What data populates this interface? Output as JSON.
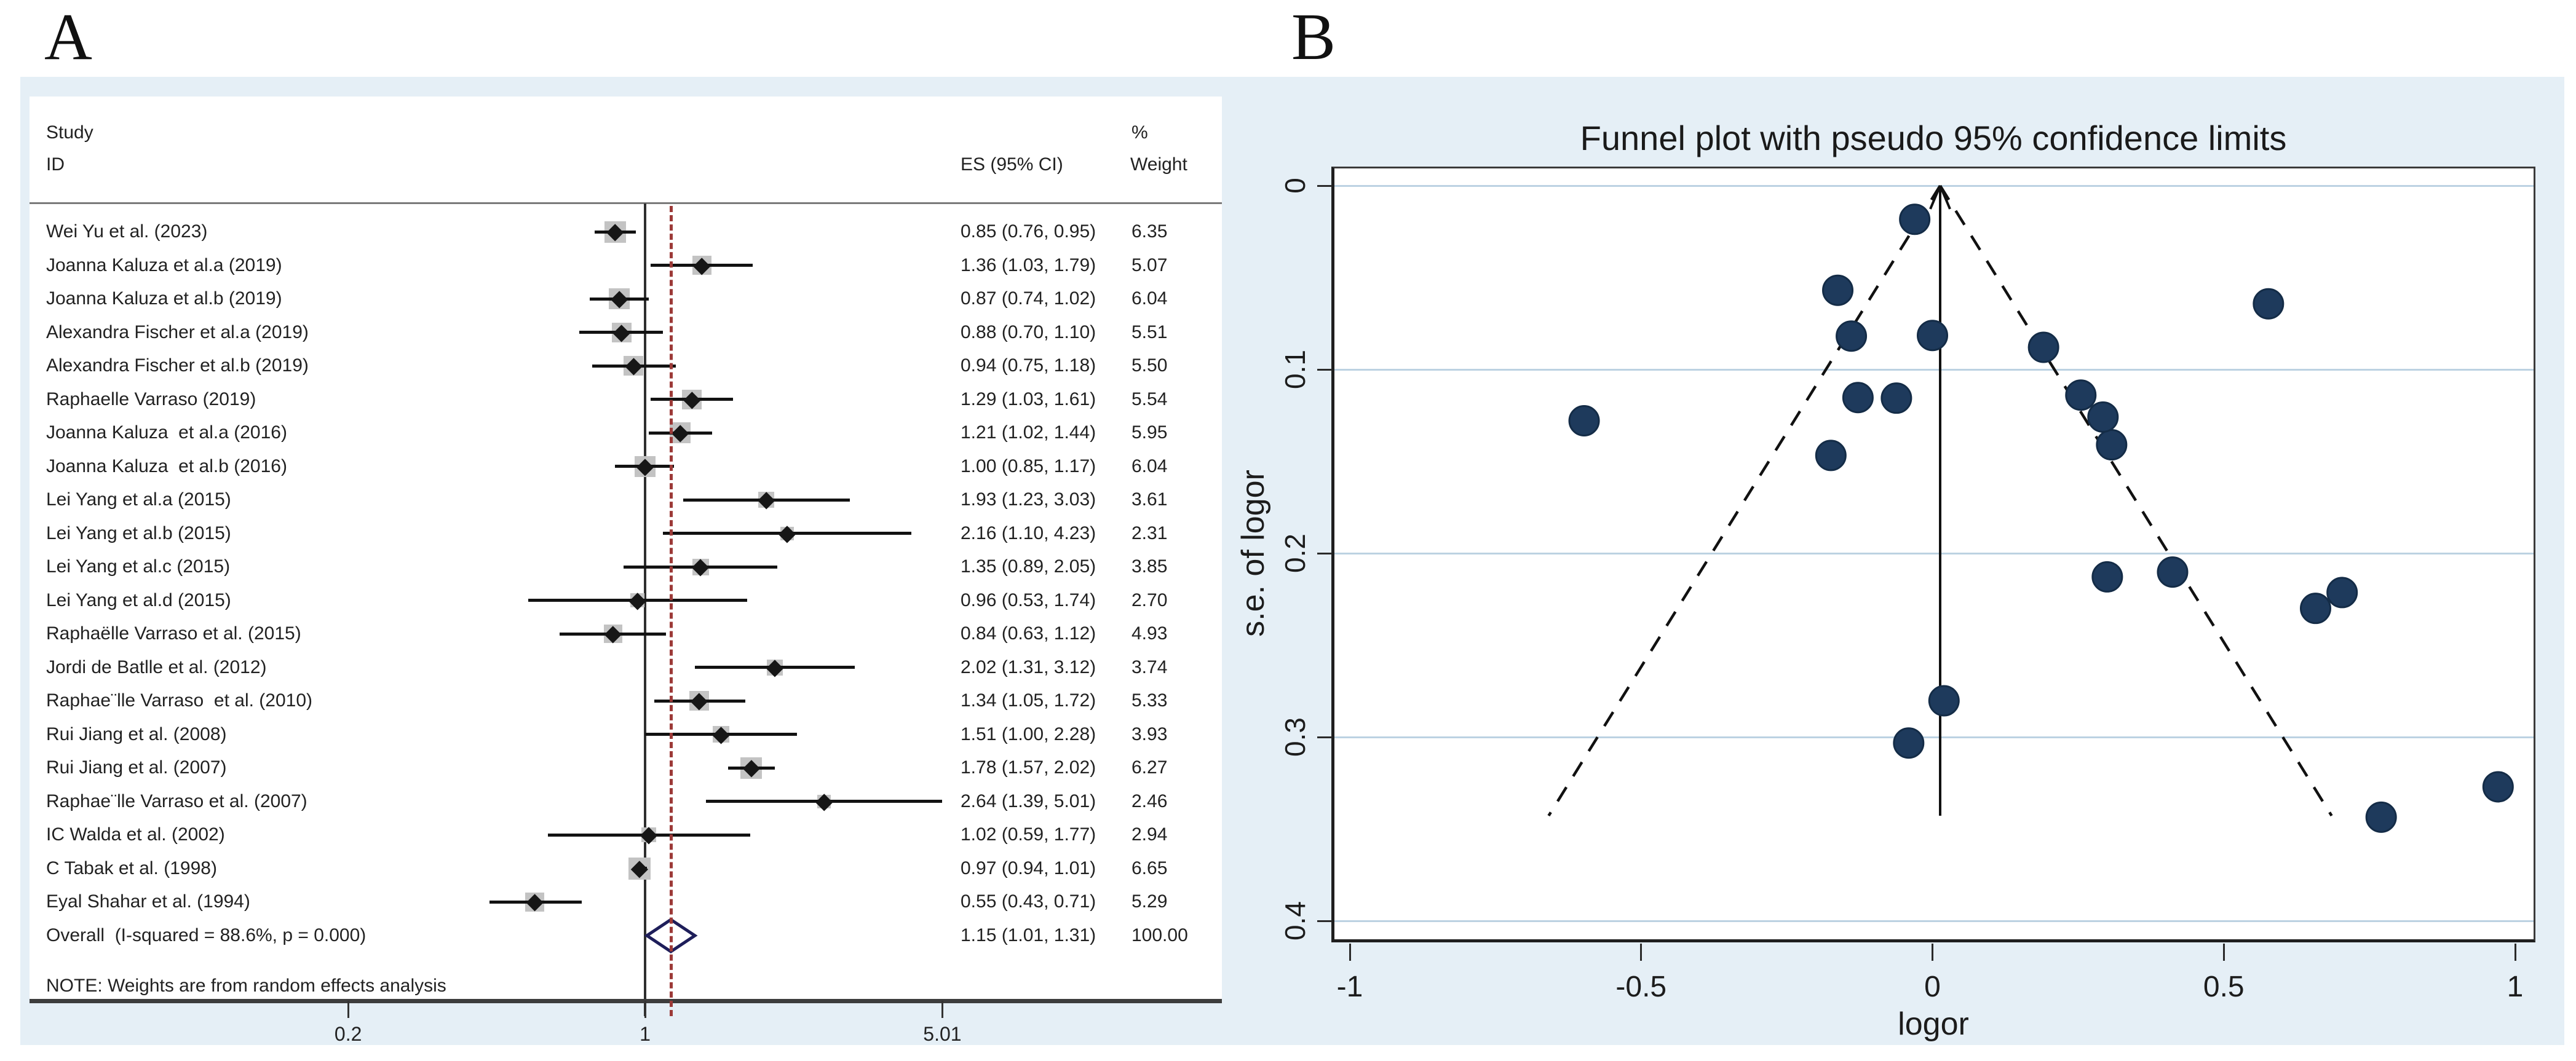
{
  "panel_a": {
    "label": "A",
    "header": {
      "study": "Study",
      "id": "ID",
      "pct": "%",
      "es": "ES (95% CI)",
      "weight": "Weight"
    },
    "studies": [
      {
        "name": "Wei Yu et al. (2023)",
        "es_label": "0.85 (0.76, 0.95)",
        "weight_label": "6.35",
        "es": 0.85,
        "lo": 0.76,
        "hi": 0.95,
        "weight": 6.35
      },
      {
        "name": "Joanna Kaluza et al.a (2019)",
        "es_label": "1.36 (1.03, 1.79)",
        "weight_label": "5.07",
        "es": 1.36,
        "lo": 1.03,
        "hi": 1.79,
        "weight": 5.07
      },
      {
        "name": "Joanna Kaluza et al.b (2019)",
        "es_label": "0.87 (0.74, 1.02)",
        "weight_label": "6.04",
        "es": 0.87,
        "lo": 0.74,
        "hi": 1.02,
        "weight": 6.04
      },
      {
        "name": "Alexandra Fischer et al.a (2019)",
        "es_label": "0.88 (0.70, 1.10)",
        "weight_label": "5.51",
        "es": 0.88,
        "lo": 0.7,
        "hi": 1.1,
        "weight": 5.51
      },
      {
        "name": "Alexandra Fischer et al.b (2019)",
        "es_label": "0.94 (0.75, 1.18)",
        "weight_label": "5.50",
        "es": 0.94,
        "lo": 0.75,
        "hi": 1.18,
        "weight": 5.5
      },
      {
        "name": "Raphaelle Varraso (2019)",
        "es_label": "1.29 (1.03, 1.61)",
        "weight_label": "5.54",
        "es": 1.29,
        "lo": 1.03,
        "hi": 1.61,
        "weight": 5.54
      },
      {
        "name": "Joanna Kaluza  et al.a (2016)",
        "es_label": "1.21 (1.02, 1.44)",
        "weight_label": "5.95",
        "es": 1.21,
        "lo": 1.02,
        "hi": 1.44,
        "weight": 5.95
      },
      {
        "name": "Joanna Kaluza  et al.b (2016)",
        "es_label": "1.00 (0.85, 1.17)",
        "weight_label": "6.04",
        "es": 1.0,
        "lo": 0.85,
        "hi": 1.17,
        "weight": 6.04
      },
      {
        "name": "Lei Yang et al.a (2015)",
        "es_label": "1.93 (1.23, 3.03)",
        "weight_label": "3.61",
        "es": 1.93,
        "lo": 1.23,
        "hi": 3.03,
        "weight": 3.61
      },
      {
        "name": "Lei Yang et al.b (2015)",
        "es_label": "2.16 (1.10, 4.23)",
        "weight_label": "2.31",
        "es": 2.16,
        "lo": 1.1,
        "hi": 4.23,
        "weight": 2.31
      },
      {
        "name": "Lei Yang et al.c (2015)",
        "es_label": "1.35 (0.89, 2.05)",
        "weight_label": "3.85",
        "es": 1.35,
        "lo": 0.89,
        "hi": 2.05,
        "weight": 3.85
      },
      {
        "name": "Lei Yang et al.d (2015)",
        "es_label": "0.96 (0.53, 1.74)",
        "weight_label": "2.70",
        "es": 0.96,
        "lo": 0.53,
        "hi": 1.74,
        "weight": 2.7
      },
      {
        "name": "Raphaëlle Varraso et al. (2015)",
        "es_label": "0.84 (0.63, 1.12)",
        "weight_label": "4.93",
        "es": 0.84,
        "lo": 0.63,
        "hi": 1.12,
        "weight": 4.93
      },
      {
        "name": "Jordi de Batlle et al. (2012)",
        "es_label": "2.02 (1.31, 3.12)",
        "weight_label": "3.74",
        "es": 2.02,
        "lo": 1.31,
        "hi": 3.12,
        "weight": 3.74
      },
      {
        "name": "Raphae¨lle Varraso  et al. (2010)",
        "es_label": "1.34 (1.05, 1.72)",
        "weight_label": "5.33",
        "es": 1.34,
        "lo": 1.05,
        "hi": 1.72,
        "weight": 5.33
      },
      {
        "name": "Rui Jiang et al. (2008)",
        "es_label": "1.51 (1.00, 2.28)",
        "weight_label": "3.93",
        "es": 1.51,
        "lo": 1.0,
        "hi": 2.28,
        "weight": 3.93
      },
      {
        "name": "Rui Jiang et al. (2007)",
        "es_label": "1.78 (1.57, 2.02)",
        "weight_label": "6.27",
        "es": 1.78,
        "lo": 1.57,
        "hi": 2.02,
        "weight": 6.27
      },
      {
        "name": "Raphae¨lle Varraso et al. (2007)",
        "es_label": "2.64 (1.39, 5.01)",
        "weight_label": "2.46",
        "es": 2.64,
        "lo": 1.39,
        "hi": 5.01,
        "weight": 2.46
      },
      {
        "name": "IC Walda et al. (2002)",
        "es_label": "1.02 (0.59, 1.77)",
        "weight_label": "2.94",
        "es": 1.02,
        "lo": 0.59,
        "hi": 1.77,
        "weight": 2.94
      },
      {
        "name": "C Tabak et al. (1998)",
        "es_label": "0.97 (0.94, 1.01)",
        "weight_label": "6.65",
        "es": 0.97,
        "lo": 0.94,
        "hi": 1.01,
        "weight": 6.65
      },
      {
        "name": "Eyal Shahar et al. (1994)",
        "es_label": "0.55 (0.43, 0.71)",
        "weight_label": "5.29",
        "es": 0.55,
        "lo": 0.43,
        "hi": 0.71,
        "weight": 5.29
      }
    ],
    "overall": {
      "name": "Overall  (I-squared = 88.6%, p = 0.000)",
      "es_label": "1.15 (1.01, 1.31)",
      "weight_label": "100.00",
      "es": 1.15,
      "lo": 1.01,
      "hi": 1.31
    },
    "note": "NOTE: Weights are from random effects analysis",
    "x_ticks": [
      {
        "label": "0.2",
        "value": 0.2
      },
      {
        "label": "1",
        "value": 1
      },
      {
        "label": "5.01",
        "value": 5.01
      }
    ]
  },
  "panel_b": {
    "label": "B",
    "title": "Funnel plot with pseudo 95% confidence limits",
    "x_axis_title": "logor",
    "y_axis_title": "s.e. of logor",
    "x_ticks": [
      {
        "label": "-1",
        "value": -1
      },
      {
        "label": "-0.5",
        "value": -0.5
      },
      {
        "label": "0",
        "value": 0
      },
      {
        "label": "0.5",
        "value": 0.5
      },
      {
        "label": "1",
        "value": 1
      }
    ],
    "y_ticks": [
      {
        "label": "0",
        "value": 0
      },
      {
        "label": "0.1",
        "value": 0.1
      },
      {
        "label": "0.2",
        "value": 0.2
      },
      {
        "label": "0.3",
        "value": 0.3
      },
      {
        "label": "0.4",
        "value": 0.4
      }
    ]
  },
  "colors": {
    "background_blue": "#e5eff6",
    "panel_white": "#ffffff",
    "gridline_blue": "#bcd2e2",
    "funnel_point_fill": "#1e3a5c",
    "funnel_point_stroke": "#142c47",
    "overall_diamond_stroke": "#1e1e5a",
    "red_dashed_line": "#9c3a38",
    "ci_line_black": "#121212",
    "weight_square_gray": "#c3c3c3",
    "axis_dark": "#3d3d3d"
  },
  "chart_data": [
    {
      "type": "forest",
      "title": "",
      "xlabel_ticks": [
        0.2,
        1,
        5.01
      ],
      "x_scale": "log",
      "null_line": 1,
      "overall_line": 1.15,
      "note": "NOTE: Weights are from random effects analysis",
      "series": [
        {
          "study": "Wei Yu et al. (2023)",
          "es": 0.85,
          "ci": [
            0.76,
            0.95
          ],
          "weight_pct": 6.35
        },
        {
          "study": "Joanna Kaluza et al.a (2019)",
          "es": 1.36,
          "ci": [
            1.03,
            1.79
          ],
          "weight_pct": 5.07
        },
        {
          "study": "Joanna Kaluza et al.b (2019)",
          "es": 0.87,
          "ci": [
            0.74,
            1.02
          ],
          "weight_pct": 6.04
        },
        {
          "study": "Alexandra Fischer et al.a (2019)",
          "es": 0.88,
          "ci": [
            0.7,
            1.1
          ],
          "weight_pct": 5.51
        },
        {
          "study": "Alexandra Fischer et al.b (2019)",
          "es": 0.94,
          "ci": [
            0.75,
            1.18
          ],
          "weight_pct": 5.5
        },
        {
          "study": "Raphaelle Varraso (2019)",
          "es": 1.29,
          "ci": [
            1.03,
            1.61
          ],
          "weight_pct": 5.54
        },
        {
          "study": "Joanna Kaluza et al.a (2016)",
          "es": 1.21,
          "ci": [
            1.02,
            1.44
          ],
          "weight_pct": 5.95
        },
        {
          "study": "Joanna Kaluza et al.b (2016)",
          "es": 1.0,
          "ci": [
            0.85,
            1.17
          ],
          "weight_pct": 6.04
        },
        {
          "study": "Lei Yang et al.a (2015)",
          "es": 1.93,
          "ci": [
            1.23,
            3.03
          ],
          "weight_pct": 3.61
        },
        {
          "study": "Lei Yang et al.b (2015)",
          "es": 2.16,
          "ci": [
            1.1,
            4.23
          ],
          "weight_pct": 2.31
        },
        {
          "study": "Lei Yang et al.c (2015)",
          "es": 1.35,
          "ci": [
            0.89,
            2.05
          ],
          "weight_pct": 3.85
        },
        {
          "study": "Lei Yang et al.d (2015)",
          "es": 0.96,
          "ci": [
            0.53,
            1.74
          ],
          "weight_pct": 2.7
        },
        {
          "study": "Raphaëlle Varraso et al. (2015)",
          "es": 0.84,
          "ci": [
            0.63,
            1.12
          ],
          "weight_pct": 4.93
        },
        {
          "study": "Jordi de Batlle et al. (2012)",
          "es": 2.02,
          "ci": [
            1.31,
            3.12
          ],
          "weight_pct": 3.74
        },
        {
          "study": "Raphae¨lle Varraso et al. (2010)",
          "es": 1.34,
          "ci": [
            1.05,
            1.72
          ],
          "weight_pct": 5.33
        },
        {
          "study": "Rui Jiang et al. (2008)",
          "es": 1.51,
          "ci": [
            1.0,
            2.28
          ],
          "weight_pct": 3.93
        },
        {
          "study": "Rui Jiang et al. (2007)",
          "es": 1.78,
          "ci": [
            1.57,
            2.02
          ],
          "weight_pct": 6.27
        },
        {
          "study": "Raphae¨lle Varraso et al. (2007)",
          "es": 2.64,
          "ci": [
            1.39,
            5.01
          ],
          "weight_pct": 2.46
        },
        {
          "study": "IC Walda et al. (2002)",
          "es": 1.02,
          "ci": [
            0.59,
            1.77
          ],
          "weight_pct": 2.94
        },
        {
          "study": "C Tabak et al. (1998)",
          "es": 0.97,
          "ci": [
            0.94,
            1.01
          ],
          "weight_pct": 6.65
        },
        {
          "study": "Eyal Shahar et al. (1994)",
          "es": 0.55,
          "ci": [
            0.43,
            0.71
          ],
          "weight_pct": 5.29
        }
      ],
      "overall": {
        "es": 1.15,
        "ci": [
          1.01,
          1.31
        ],
        "weight_pct": 100.0,
        "i_squared_pct": 88.6,
        "p": 0.0
      }
    },
    {
      "type": "scatter",
      "title": "Funnel plot with pseudo 95% confidence limits",
      "xlabel": "logor",
      "ylabel": "s.e. of logor",
      "xlim": [
        -1,
        1
      ],
      "ylim_inverted": [
        0,
        0.4
      ],
      "grid": true,
      "center_line_x": 0.013,
      "pseudo_ci_slope": 1.96,
      "points_logor_se": [
        [
          -0.163,
          0.057
        ],
        [
          0.308,
          0.141
        ],
        [
          -0.139,
          0.082
        ],
        [
          -0.128,
          0.115
        ],
        [
          -0.062,
          0.116
        ],
        [
          0.255,
          0.114
        ],
        [
          0.191,
          0.088
        ],
        [
          0.0,
          0.082
        ],
        [
          0.658,
          0.23
        ],
        [
          0.77,
          0.344
        ],
        [
          0.3,
          0.213
        ],
        [
          -0.041,
          0.303
        ],
        [
          -0.174,
          0.147
        ],
        [
          0.703,
          0.221
        ],
        [
          0.293,
          0.126
        ],
        [
          0.412,
          0.21
        ],
        [
          0.577,
          0.064
        ],
        [
          0.971,
          0.327
        ],
        [
          0.02,
          0.28
        ],
        [
          -0.03,
          0.018
        ],
        [
          -0.598,
          0.128
        ]
      ]
    }
  ]
}
